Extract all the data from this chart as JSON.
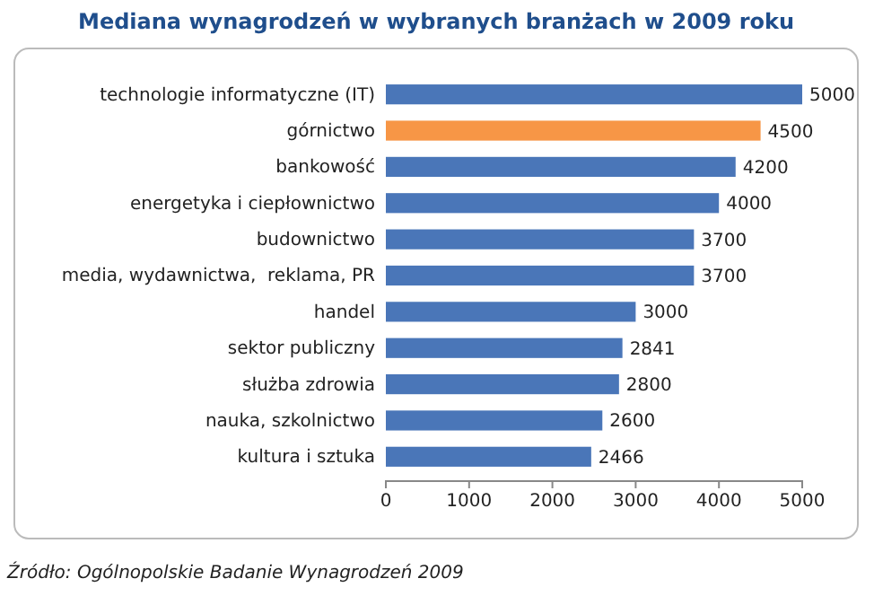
{
  "chart_data": {
    "type": "bar",
    "orientation": "horizontal",
    "title": "Mediana wynagrodzeń w wybranych branżach w 2009 roku",
    "categories": [
      "technologie informatyczne (IT)",
      "górnictwo",
      "bankowość",
      "energetyka i ciepłownictwo",
      "budownictwo",
      "media, wydawnictwa,  reklama, PR",
      "handel",
      "sektor publiczny",
      "służba zdrowia",
      "nauka, szkolnictwo",
      "kultura i sztuka"
    ],
    "values": [
      5000,
      4500,
      4200,
      4000,
      3700,
      3700,
      3000,
      2841,
      2800,
      2600,
      2466
    ],
    "colors": [
      "#4a76b8",
      "#f79646",
      "#4a76b8",
      "#4a76b8",
      "#4a76b8",
      "#4a76b8",
      "#4a76b8",
      "#4a76b8",
      "#4a76b8",
      "#4a76b8",
      "#4a76b8"
    ],
    "xlim": [
      0,
      5000
    ],
    "xticks": [
      0,
      1000,
      2000,
      3000,
      4000,
      5000
    ],
    "data_labels": true,
    "grid": false,
    "annotations": [
      "Źródło: Ogólnopolskie Badanie Wynagrodzeń 2009"
    ]
  }
}
